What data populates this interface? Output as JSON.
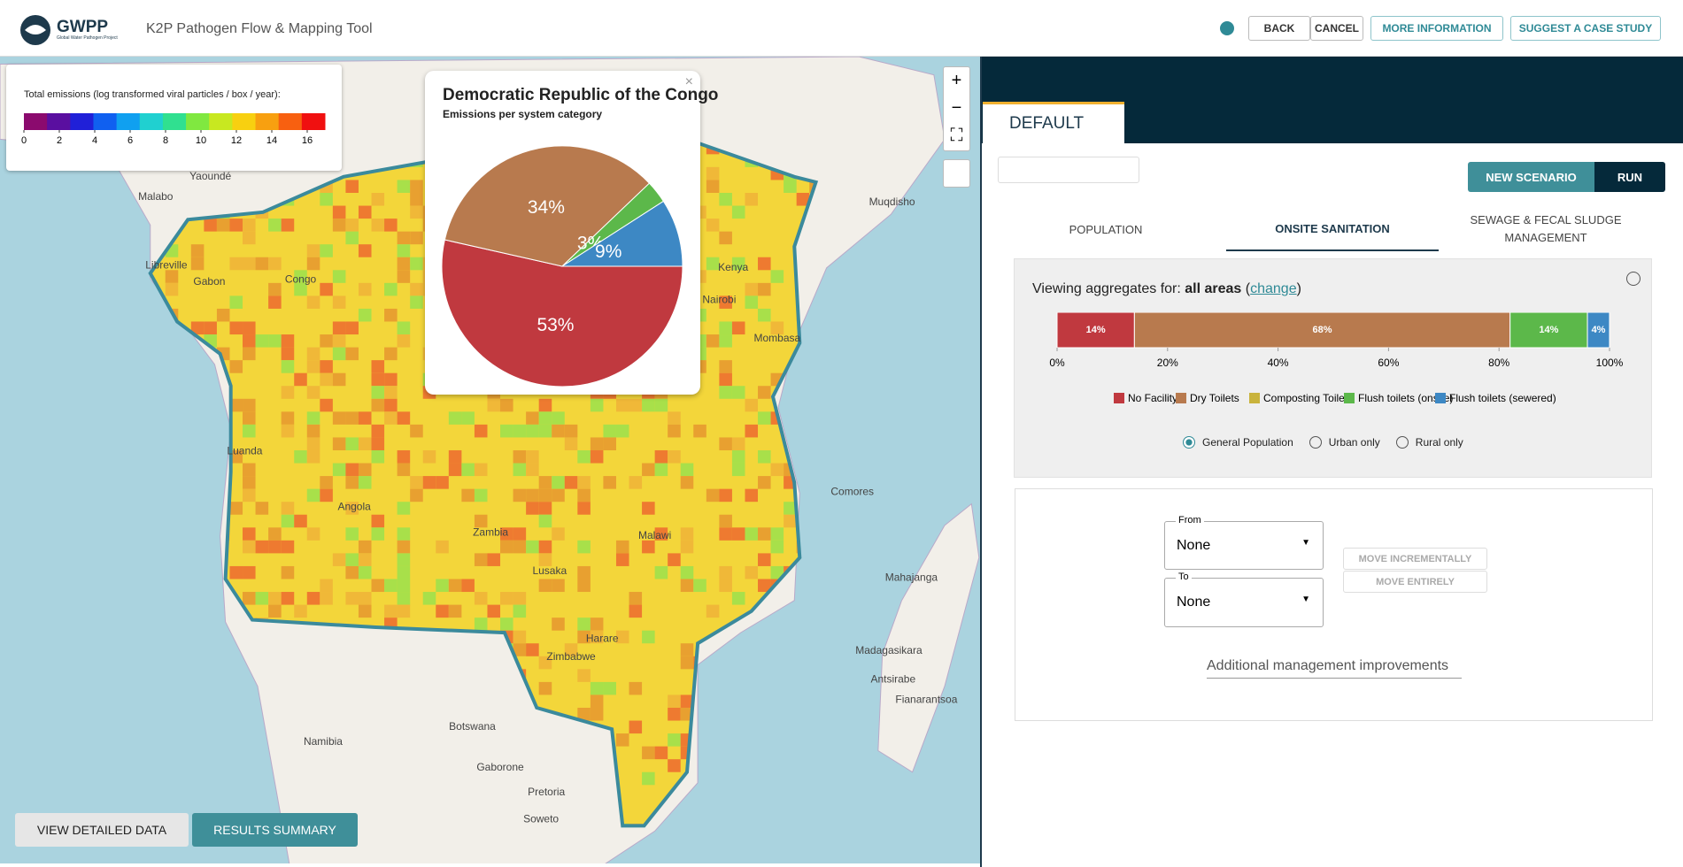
{
  "header": {
    "logo": "GWPP",
    "logo_sub": "Global Water Pathogen Project",
    "tool_title": "K2P Pathogen Flow & Mapping Tool",
    "buttons": [
      "BACK",
      "CANCEL",
      "MORE INFORMATION",
      "SUGGEST A CASE STUDY"
    ]
  },
  "map": {
    "legend_title": "Total emissions (log transformed viral particles / box / year):",
    "legend_ticks": [
      0,
      2,
      4,
      6,
      8,
      10,
      12,
      14,
      16
    ],
    "labels": [
      "Congo",
      "Gabon",
      "Angola",
      "Zambia",
      "Zimbabwe",
      "Namibia",
      "Botswana",
      "Lusaka",
      "Harare",
      "Luanda",
      "Kenya",
      "Nairobi",
      "Mombasa",
      "Madagasikara",
      "Antsirabe",
      "Fianarantsoa",
      "Mahajanga",
      "Gaborone",
      "Pretoria",
      "Soweto",
      "Yaoundé",
      "Malabo",
      "Libreville",
      "Comores",
      "Muqdisho",
      "Malawi"
    ],
    "buttons": [
      "VIEW DETAILED DATA",
      "RESULTS SUMMARY"
    ]
  },
  "chart_data": {
    "type": "pie",
    "title": "Democratic Republic of the Congo",
    "subtitle": "Emissions per system category",
    "categories": [
      "No Facility",
      "Dry Toilets",
      "Flush toilets (onsite)",
      "Flush toilets (sewered)"
    ],
    "values": [
      53,
      34,
      3,
      9
    ],
    "value_labels": [
      "53%",
      "34%",
      "3%",
      "9%"
    ],
    "colors": [
      "#c0393f",
      "#b87a4e",
      "#5cb84a",
      "#3d88c4"
    ]
  },
  "panel": {
    "scenario": "DEFAULT",
    "new_scenario": "NEW SCENARIO",
    "run": "RUN",
    "tabs": [
      "POPULATION",
      "ONSITE SANITATION",
      "SEWAGE & FECAL SLUDGE MANAGEMENT"
    ],
    "viewing_prefix": "Viewing aggregates for:",
    "viewing_area": "all areas",
    "change": "change",
    "bar": {
      "type": "stacked-bar",
      "series": [
        {
          "name": "No Facility",
          "color": "#c0393f",
          "values": [
            14
          ],
          "value_labels": [
            "14%"
          ]
        },
        {
          "name": "Dry Toilets",
          "color": "#b87a4e",
          "values": [
            68
          ],
          "value_labels": [
            "68%"
          ]
        },
        {
          "name": "Composting Toilets",
          "color": "#c9b33c",
          "values": [
            0
          ]
        },
        {
          "name": "Flush toilets (onsite)",
          "color": "#5cb84a",
          "values": [
            14
          ],
          "value_labels": [
            "14%"
          ]
        },
        {
          "name": "Flush toilets (sewered)",
          "color": "#3d88c4",
          "values": [
            4
          ],
          "value_labels": [
            "4%"
          ]
        }
      ],
      "xlim": [
        0,
        100
      ],
      "xticks": [
        {
          "value": 0,
          "label": "0%"
        },
        {
          "value": 20,
          "label": "20%"
        },
        {
          "value": 40,
          "label": "40%"
        },
        {
          "value": 60,
          "label": "60%"
        },
        {
          "value": 80,
          "label": "80%"
        },
        {
          "value": 100,
          "label": "100%"
        }
      ]
    },
    "radios": [
      "General Population",
      "Urban only",
      "Rural only"
    ],
    "from_label": "From",
    "from_value": "None",
    "to_label": "To",
    "to_value": "None",
    "move_incrementally": "MOVE INCREMENTALLY",
    "move_entirely": "MOVE ENTIRELY",
    "additional": "Additional management improvements"
  }
}
